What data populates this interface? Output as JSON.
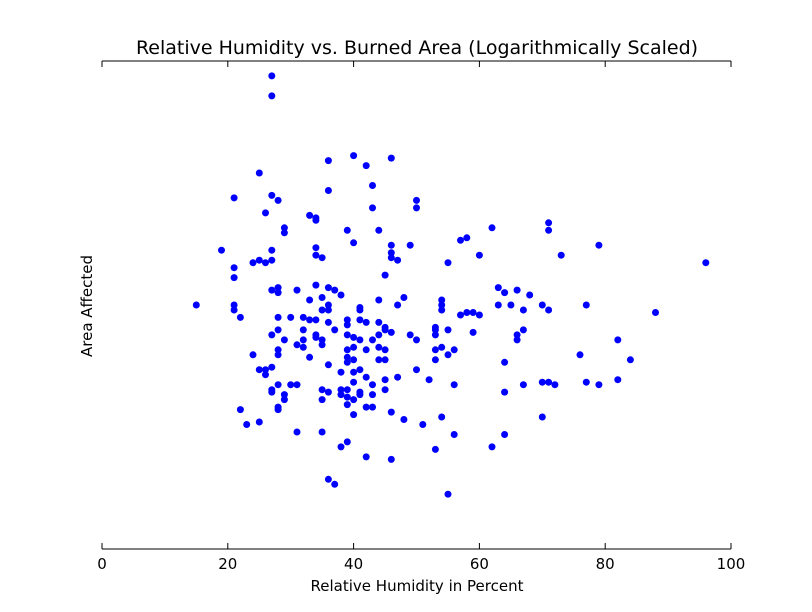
{
  "chart_data": {
    "type": "scatter",
    "title": "Relative Humidity vs. Burned Area (Logarithmically Scaled)",
    "xlabel": "Relative Humidity in Percent",
    "ylabel": "Area Affected",
    "xlim": [
      0,
      100
    ],
    "ylim": [
      -4.9,
      4.9
    ],
    "xticks": [
      0,
      20,
      40,
      60,
      80,
      100
    ],
    "y_tick_labels_shown": false,
    "grid": false,
    "point_color": "#0000ff",
    "points": [
      [
        27,
        4.6
      ],
      [
        27,
        4.2
      ],
      [
        40,
        3.0
      ],
      [
        46,
        2.95
      ],
      [
        42,
        2.8
      ],
      [
        36,
        2.9
      ],
      [
        25,
        2.65
      ],
      [
        43,
        2.4
      ],
      [
        36,
        2.3
      ],
      [
        27,
        2.2
      ],
      [
        28,
        2.1
      ],
      [
        21,
        2.15
      ],
      [
        50,
        2.1
      ],
      [
        43,
        1.95
      ],
      [
        50,
        1.95
      ],
      [
        26,
        1.85
      ],
      [
        33,
        1.8
      ],
      [
        34,
        1.75
      ],
      [
        34,
        1.7
      ],
      [
        29,
        1.55
      ],
      [
        29,
        1.45
      ],
      [
        39,
        1.5
      ],
      [
        44,
        1.5
      ],
      [
        40,
        1.25
      ],
      [
        46,
        1.2
      ],
      [
        49,
        1.2
      ],
      [
        57,
        1.3
      ],
      [
        58,
        1.35
      ],
      [
        62,
        1.55
      ],
      [
        71,
        1.65
      ],
      [
        71,
        1.5
      ],
      [
        79,
        1.2
      ],
      [
        19,
        1.1
      ],
      [
        27,
        1.1
      ],
      [
        34,
        1.15
      ],
      [
        34,
        1.0
      ],
      [
        46,
        1.05
      ],
      [
        46,
        0.95
      ],
      [
        47,
        0.9
      ],
      [
        60,
        1.0
      ],
      [
        73,
        1.0
      ],
      [
        25,
        0.9
      ],
      [
        24,
        0.85
      ],
      [
        26,
        0.85
      ],
      [
        27,
        0.9
      ],
      [
        21,
        0.75
      ],
      [
        35,
        0.95
      ],
      [
        55,
        0.85
      ],
      [
        96,
        0.85
      ],
      [
        21,
        0.55
      ],
      [
        45,
        0.6
      ],
      [
        27,
        0.3
      ],
      [
        28,
        0.35
      ],
      [
        28,
        0.25
      ],
      [
        34,
        0.4
      ],
      [
        36,
        0.35
      ],
      [
        37,
        0.3
      ],
      [
        38,
        0.2
      ],
      [
        31,
        0.3
      ],
      [
        33,
        0.1
      ],
      [
        35,
        0.15
      ],
      [
        36,
        0.0
      ],
      [
        44,
        0.1
      ],
      [
        48,
        0.15
      ],
      [
        54,
        0.1
      ],
      [
        63,
        0.35
      ],
      [
        64,
        0.25
      ],
      [
        66,
        0.3
      ],
      [
        68,
        0.2
      ],
      [
        15,
        0.0
      ],
      [
        21,
        0.0
      ],
      [
        21,
        -0.1
      ],
      [
        22,
        -0.25
      ],
      [
        35,
        -0.1
      ],
      [
        36,
        -0.1
      ],
      [
        41,
        -0.05
      ],
      [
        41,
        -0.1
      ],
      [
        47,
        0.0
      ],
      [
        54,
        0.0
      ],
      [
        54,
        -0.1
      ],
      [
        57,
        -0.2
      ],
      [
        58,
        -0.15
      ],
      [
        59,
        -0.15
      ],
      [
        60,
        -0.2
      ],
      [
        63,
        0.0
      ],
      [
        65,
        0.0
      ],
      [
        67,
        -0.1
      ],
      [
        70,
        0.0
      ],
      [
        71,
        -0.1
      ],
      [
        77,
        0.0
      ],
      [
        88,
        -0.15
      ],
      [
        28,
        -0.25
      ],
      [
        30,
        -0.25
      ],
      [
        32,
        -0.25
      ],
      [
        33,
        -0.3
      ],
      [
        34,
        -0.3
      ],
      [
        36,
        -0.35
      ],
      [
        39,
        -0.3
      ],
      [
        39,
        -0.4
      ],
      [
        41,
        -0.3
      ],
      [
        42,
        -0.35
      ],
      [
        44,
        -0.35
      ],
      [
        45,
        -0.45
      ],
      [
        45,
        -0.5
      ],
      [
        53,
        -0.45
      ],
      [
        53,
        -0.6
      ],
      [
        59,
        -0.55
      ],
      [
        28,
        -0.5
      ],
      [
        27,
        -0.6
      ],
      [
        29,
        -0.7
      ],
      [
        32,
        -0.7
      ],
      [
        32,
        -0.5
      ],
      [
        31,
        -0.8
      ],
      [
        34,
        -0.6
      ],
      [
        34,
        -0.65
      ],
      [
        35,
        -0.7
      ],
      [
        37,
        -0.5
      ],
      [
        39,
        -0.6
      ],
      [
        40,
        -0.65
      ],
      [
        41,
        -0.7
      ],
      [
        43,
        -0.7
      ],
      [
        44,
        -0.6
      ],
      [
        46,
        -0.55
      ],
      [
        49,
        -0.6
      ],
      [
        50,
        -0.7
      ],
      [
        53,
        -0.5
      ],
      [
        55,
        -0.5
      ],
      [
        66,
        -0.6
      ],
      [
        66,
        -0.7
      ],
      [
        67,
        -0.5
      ],
      [
        82,
        -0.7
      ],
      [
        28,
        -0.9
      ],
      [
        32,
        -0.85
      ],
      [
        35,
        -0.8
      ],
      [
        39,
        -0.9
      ],
      [
        40,
        -0.85
      ],
      [
        42,
        -0.9
      ],
      [
        44,
        -0.85
      ],
      [
        45,
        -0.9
      ],
      [
        53,
        -0.9
      ],
      [
        54,
        -0.85
      ],
      [
        56,
        -0.9
      ],
      [
        24,
        -1.0
      ],
      [
        33,
        -1.05
      ],
      [
        27,
        -1.25
      ],
      [
        28,
        -1.0
      ],
      [
        36,
        -1.2
      ],
      [
        39,
        -1.05
      ],
      [
        39,
        -1.15
      ],
      [
        40,
        -1.1
      ],
      [
        41,
        -1.3
      ],
      [
        44,
        -1.1
      ],
      [
        45,
        -1.1
      ],
      [
        53,
        -1.1
      ],
      [
        55,
        -1.0
      ],
      [
        64,
        -1.15
      ],
      [
        76,
        -1.0
      ],
      [
        84,
        -1.1
      ],
      [
        25,
        -1.3
      ],
      [
        26,
        -1.3
      ],
      [
        26,
        -1.4
      ],
      [
        28,
        -1.6
      ],
      [
        30,
        -1.6
      ],
      [
        31,
        -1.6
      ],
      [
        38,
        -1.35
      ],
      [
        38,
        -1.7
      ],
      [
        39,
        -1.7
      ],
      [
        40,
        -1.35
      ],
      [
        40,
        -1.55
      ],
      [
        42,
        -1.45
      ],
      [
        43,
        -1.6
      ],
      [
        45,
        -1.5
      ],
      [
        47,
        -1.45
      ],
      [
        50,
        -1.3
      ],
      [
        52,
        -1.5
      ],
      [
        56,
        -1.6
      ],
      [
        64,
        -1.75
      ],
      [
        67,
        -1.6
      ],
      [
        70,
        -1.55
      ],
      [
        71,
        -1.55
      ],
      [
        72,
        -1.6
      ],
      [
        77,
        -1.55
      ],
      [
        79,
        -1.6
      ],
      [
        82,
        -1.5
      ],
      [
        27,
        -1.7
      ],
      [
        27,
        -1.75
      ],
      [
        29,
        -1.8
      ],
      [
        29,
        -1.9
      ],
      [
        28,
        -2.05
      ],
      [
        35,
        -1.7
      ],
      [
        36,
        -1.75
      ],
      [
        38,
        -1.8
      ],
      [
        39,
        -1.85
      ],
      [
        40,
        -1.9
      ],
      [
        41,
        -1.75
      ],
      [
        41,
        -1.8
      ],
      [
        43,
        -1.8
      ],
      [
        45,
        -1.7
      ],
      [
        35,
        -1.9
      ],
      [
        39,
        -2.0
      ],
      [
        25,
        -2.35
      ],
      [
        22,
        -2.1
      ],
      [
        28,
        -2.1
      ],
      [
        40,
        -2.2
      ],
      [
        42,
        -2.05
      ],
      [
        43,
        -2.05
      ],
      [
        46,
        -2.15
      ],
      [
        48,
        -2.3
      ],
      [
        51,
        -2.4
      ],
      [
        54,
        -2.25
      ],
      [
        70,
        -2.25
      ],
      [
        23,
        -2.4
      ],
      [
        31,
        -2.55
      ],
      [
        35,
        -2.55
      ],
      [
        38,
        -2.85
      ],
      [
        39,
        -2.75
      ],
      [
        42,
        -3.05
      ],
      [
        46,
        -3.1
      ],
      [
        53,
        -2.9
      ],
      [
        56,
        -2.6
      ],
      [
        62,
        -2.85
      ],
      [
        64,
        -2.6
      ],
      [
        36,
        -3.5
      ],
      [
        37,
        -3.6
      ],
      [
        55,
        -3.8
      ]
    ]
  }
}
